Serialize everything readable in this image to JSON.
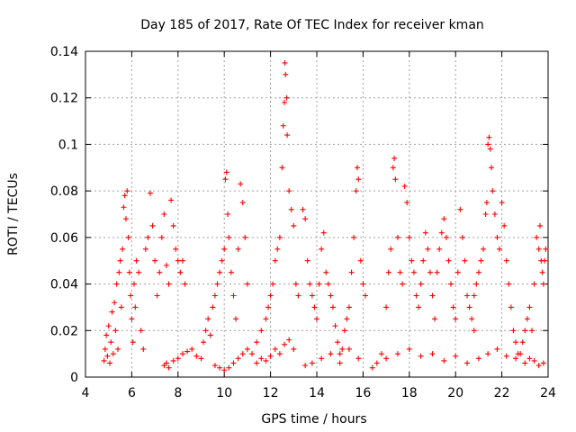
{
  "chart_data": {
    "type": "scatter",
    "title": "Day 185 of 2017, Rate Of TEC Index for receiver kman",
    "xlabel": "GPS time / hours",
    "ylabel": "ROTI / TECUs",
    "xlim": [
      4,
      24
    ],
    "ylim": [
      0,
      0.14
    ],
    "grid": true,
    "marker": "plus",
    "color": "#ff0000",
    "xticks": [
      4,
      6,
      8,
      10,
      12,
      14,
      16,
      18,
      20,
      22,
      24
    ],
    "xtick_labels": [
      "4",
      "6",
      "8",
      "10",
      "12",
      "14",
      "16",
      "18",
      "20",
      "22",
      "24"
    ],
    "yticks": [
      0,
      0.02,
      0.04,
      0.06,
      0.08,
      0.1,
      0.12,
      0.14
    ],
    "ytick_labels": [
      "0",
      "0.02",
      "0.04",
      "0.06",
      "0.08",
      "0.1",
      "0.12",
      "0.14"
    ],
    "series": [
      {
        "points": [
          [
            4.8,
            0.007
          ],
          [
            4.85,
            0.012
          ],
          [
            4.9,
            0.018
          ],
          [
            4.95,
            0.009
          ],
          [
            5.0,
            0.022
          ],
          [
            5.05,
            0.006
          ],
          [
            5.1,
            0.015
          ],
          [
            5.15,
            0.028
          ],
          [
            5.2,
            0.01
          ],
          [
            5.25,
            0.032
          ],
          [
            5.3,
            0.02
          ],
          [
            5.35,
            0.04
          ],
          [
            5.4,
            0.012
          ],
          [
            5.45,
            0.045
          ],
          [
            5.5,
            0.05
          ],
          [
            5.55,
            0.03
          ],
          [
            5.6,
            0.055
          ],
          [
            5.65,
            0.073
          ],
          [
            5.7,
            0.078
          ],
          [
            5.75,
            0.068
          ],
          [
            5.8,
            0.08
          ],
          [
            5.85,
            0.06
          ],
          [
            5.9,
            0.045
          ],
          [
            5.95,
            0.035
          ],
          [
            6.0,
            0.025
          ],
          [
            6.05,
            0.015
          ],
          [
            6.1,
            0.04
          ],
          [
            6.15,
            0.03
          ],
          [
            6.2,
            0.05
          ],
          [
            6.3,
            0.045
          ],
          [
            6.4,
            0.02
          ],
          [
            6.5,
            0.012
          ],
          [
            6.6,
            0.055
          ],
          [
            6.7,
            0.06
          ],
          [
            6.8,
            0.079
          ],
          [
            6.9,
            0.065
          ],
          [
            7.0,
            0.05
          ],
          [
            7.1,
            0.035
          ],
          [
            7.2,
            0.045
          ],
          [
            7.3,
            0.06
          ],
          [
            7.4,
            0.07
          ],
          [
            7.5,
            0.048
          ],
          [
            7.6,
            0.04
          ],
          [
            7.7,
            0.076
          ],
          [
            7.8,
            0.065
          ],
          [
            7.9,
            0.055
          ],
          [
            8.0,
            0.05
          ],
          [
            8.1,
            0.045
          ],
          [
            8.2,
            0.05
          ],
          [
            8.3,
            0.04
          ],
          [
            7.4,
            0.005
          ],
          [
            7.5,
            0.006
          ],
          [
            7.6,
            0.004
          ],
          [
            7.8,
            0.007
          ],
          [
            8.0,
            0.008
          ],
          [
            8.2,
            0.01
          ],
          [
            8.4,
            0.011
          ],
          [
            8.6,
            0.012
          ],
          [
            8.8,
            0.009
          ],
          [
            9.0,
            0.008
          ],
          [
            9.1,
            0.015
          ],
          [
            9.2,
            0.02
          ],
          [
            9.3,
            0.025
          ],
          [
            9.4,
            0.018
          ],
          [
            9.5,
            0.03
          ],
          [
            9.6,
            0.035
          ],
          [
            9.7,
            0.04
          ],
          [
            9.8,
            0.045
          ],
          [
            9.9,
            0.05
          ],
          [
            10.0,
            0.055
          ],
          [
            10.05,
            0.085
          ],
          [
            10.1,
            0.088
          ],
          [
            10.15,
            0.07
          ],
          [
            10.2,
            0.06
          ],
          [
            10.3,
            0.045
          ],
          [
            10.4,
            0.035
          ],
          [
            10.5,
            0.025
          ],
          [
            10.6,
            0.055
          ],
          [
            10.7,
            0.083
          ],
          [
            10.8,
            0.075
          ],
          [
            10.9,
            0.06
          ],
          [
            11.0,
            0.04
          ],
          [
            9.6,
            0.005
          ],
          [
            9.8,
            0.004
          ],
          [
            10.0,
            0.003
          ],
          [
            10.2,
            0.004
          ],
          [
            10.4,
            0.006
          ],
          [
            10.6,
            0.008
          ],
          [
            10.8,
            0.01
          ],
          [
            11.0,
            0.012
          ],
          [
            11.2,
            0.01
          ],
          [
            11.4,
            0.015
          ],
          [
            11.6,
            0.02
          ],
          [
            11.8,
            0.025
          ],
          [
            11.9,
            0.03
          ],
          [
            12.0,
            0.035
          ],
          [
            12.1,
            0.04
          ],
          [
            12.2,
            0.05
          ],
          [
            12.3,
            0.055
          ],
          [
            12.4,
            0.06
          ],
          [
            12.5,
            0.09
          ],
          [
            12.55,
            0.108
          ],
          [
            12.6,
            0.118
          ],
          [
            12.62,
            0.135
          ],
          [
            12.65,
            0.13
          ],
          [
            12.7,
            0.12
          ],
          [
            12.72,
            0.104
          ],
          [
            12.8,
            0.08
          ],
          [
            12.9,
            0.072
          ],
          [
            13.0,
            0.065
          ],
          [
            13.1,
            0.04
          ],
          [
            13.2,
            0.035
          ],
          [
            11.4,
            0.006
          ],
          [
            11.6,
            0.008
          ],
          [
            11.8,
            0.007
          ],
          [
            12.0,
            0.009
          ],
          [
            12.2,
            0.012
          ],
          [
            12.4,
            0.01
          ],
          [
            12.6,
            0.014
          ],
          [
            12.8,
            0.016
          ],
          [
            13.0,
            0.012
          ],
          [
            13.4,
            0.072
          ],
          [
            13.5,
            0.068
          ],
          [
            13.6,
            0.05
          ],
          [
            13.7,
            0.04
          ],
          [
            13.8,
            0.035
          ],
          [
            13.9,
            0.03
          ],
          [
            14.0,
            0.025
          ],
          [
            14.1,
            0.04
          ],
          [
            14.2,
            0.055
          ],
          [
            14.3,
            0.062
          ],
          [
            14.4,
            0.045
          ],
          [
            14.5,
            0.04
          ],
          [
            14.6,
            0.035
          ],
          [
            14.7,
            0.03
          ],
          [
            14.8,
            0.022
          ],
          [
            14.9,
            0.015
          ],
          [
            15.0,
            0.01
          ],
          [
            15.1,
            0.012
          ],
          [
            15.2,
            0.02
          ],
          [
            15.3,
            0.025
          ],
          [
            15.4,
            0.03
          ],
          [
            15.5,
            0.045
          ],
          [
            15.6,
            0.06
          ],
          [
            15.7,
            0.08
          ],
          [
            15.75,
            0.09
          ],
          [
            15.8,
            0.085
          ],
          [
            15.9,
            0.05
          ],
          [
            16.0,
            0.04
          ],
          [
            16.1,
            0.035
          ],
          [
            13.5,
            0.005
          ],
          [
            13.8,
            0.006
          ],
          [
            14.2,
            0.008
          ],
          [
            14.6,
            0.01
          ],
          [
            15.0,
            0.006
          ],
          [
            15.4,
            0.012
          ],
          [
            15.8,
            0.008
          ],
          [
            16.4,
            0.004
          ],
          [
            16.6,
            0.006
          ],
          [
            16.8,
            0.01
          ],
          [
            17.0,
            0.03
          ],
          [
            17.1,
            0.045
          ],
          [
            17.2,
            0.055
          ],
          [
            17.3,
            0.09
          ],
          [
            17.35,
            0.094
          ],
          [
            17.4,
            0.085
          ],
          [
            17.5,
            0.06
          ],
          [
            17.6,
            0.045
          ],
          [
            17.7,
            0.04
          ],
          [
            17.8,
            0.082
          ],
          [
            17.9,
            0.075
          ],
          [
            18.0,
            0.06
          ],
          [
            18.1,
            0.05
          ],
          [
            18.2,
            0.045
          ],
          [
            18.3,
            0.035
          ],
          [
            18.4,
            0.03
          ],
          [
            18.5,
            0.04
          ],
          [
            18.6,
            0.05
          ],
          [
            18.7,
            0.062
          ],
          [
            18.8,
            0.055
          ],
          [
            18.9,
            0.045
          ],
          [
            19.0,
            0.035
          ],
          [
            19.1,
            0.025
          ],
          [
            19.2,
            0.045
          ],
          [
            19.3,
            0.055
          ],
          [
            19.4,
            0.062
          ],
          [
            19.5,
            0.068
          ],
          [
            19.6,
            0.06
          ],
          [
            19.7,
            0.05
          ],
          [
            19.8,
            0.04
          ],
          [
            19.9,
            0.03
          ],
          [
            20.0,
            0.025
          ],
          [
            20.1,
            0.045
          ],
          [
            20.2,
            0.072
          ],
          [
            20.3,
            0.06
          ],
          [
            20.4,
            0.05
          ],
          [
            20.5,
            0.035
          ],
          [
            20.6,
            0.03
          ],
          [
            20.7,
            0.025
          ],
          [
            20.8,
            0.02
          ],
          [
            17.0,
            0.008
          ],
          [
            17.5,
            0.01
          ],
          [
            18.0,
            0.012
          ],
          [
            18.5,
            0.009
          ],
          [
            19.0,
            0.01
          ],
          [
            19.5,
            0.007
          ],
          [
            20.0,
            0.009
          ],
          [
            20.5,
            0.006
          ],
          [
            20.8,
            0.035
          ],
          [
            20.9,
            0.04
          ],
          [
            21.0,
            0.045
          ],
          [
            21.1,
            0.05
          ],
          [
            21.2,
            0.055
          ],
          [
            21.3,
            0.07
          ],
          [
            21.35,
            0.075
          ],
          [
            21.4,
            0.1
          ],
          [
            21.45,
            0.103
          ],
          [
            21.5,
            0.098
          ],
          [
            21.55,
            0.09
          ],
          [
            21.6,
            0.08
          ],
          [
            21.7,
            0.07
          ],
          [
            21.8,
            0.06
          ],
          [
            21.9,
            0.055
          ],
          [
            22.0,
            0.075
          ],
          [
            22.1,
            0.065
          ],
          [
            22.2,
            0.05
          ],
          [
            22.3,
            0.04
          ],
          [
            22.4,
            0.03
          ],
          [
            22.5,
            0.02
          ],
          [
            22.6,
            0.015
          ],
          [
            22.7,
            0.01
          ],
          [
            21.0,
            0.008
          ],
          [
            21.4,
            0.01
          ],
          [
            21.8,
            0.012
          ],
          [
            22.2,
            0.009
          ],
          [
            22.6,
            0.008
          ],
          [
            22.8,
            0.01
          ],
          [
            22.9,
            0.015
          ],
          [
            23.0,
            0.02
          ],
          [
            23.1,
            0.025
          ],
          [
            23.2,
            0.03
          ],
          [
            23.3,
            0.02
          ],
          [
            23.4,
            0.04
          ],
          [
            23.5,
            0.06
          ],
          [
            23.6,
            0.055
          ],
          [
            23.65,
            0.065
          ],
          [
            23.7,
            0.05
          ],
          [
            23.75,
            0.045
          ],
          [
            23.8,
            0.04
          ],
          [
            23.85,
            0.05
          ],
          [
            23.9,
            0.055
          ],
          [
            23.0,
            0.006
          ],
          [
            23.2,
            0.008
          ],
          [
            23.4,
            0.007
          ],
          [
            23.6,
            0.005
          ],
          [
            23.8,
            0.006
          ]
        ]
      }
    ]
  }
}
